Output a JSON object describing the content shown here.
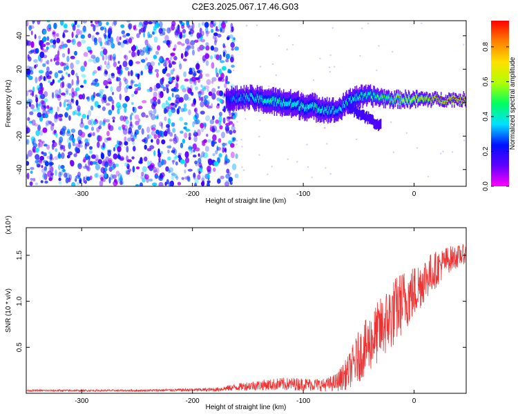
{
  "title": "C2E3.2025.067.17.46.G03",
  "chart_data": [
    {
      "type": "heatmap",
      "xlabel": "Height of straight line (km)",
      "ylabel": "Frequency (Hz)",
      "xlim": [
        -350,
        47
      ],
      "ylim": [
        -50,
        49
      ],
      "xticks": [
        -300,
        -200,
        -100,
        0
      ],
      "yticks": [
        -40,
        -20,
        0,
        20,
        40
      ],
      "colorbar": {
        "label": "Normalized spectral amplitude",
        "range": [
          0.0,
          0.95
        ],
        "ticks": [
          0.0,
          0.2,
          0.4,
          0.6,
          0.8
        ],
        "colormap": [
          "#ff00ff",
          "#6000ff",
          "#0010ff",
          "#00e0ff",
          "#00ff60",
          "#b0ff00",
          "#ffe000",
          "#ff8000",
          "#ff0000"
        ]
      },
      "noise_region": {
        "x_range": [
          -350,
          -165
        ],
        "freq_range": [
          -50,
          49
        ],
        "amplitude_range": [
          0.0,
          0.2
        ]
      },
      "signal_band": [
        {
          "x": -170,
          "f": 2,
          "amp": 0.25,
          "spread": 5
        },
        {
          "x": -150,
          "f": 3,
          "amp": 0.35,
          "spread": 5
        },
        {
          "x": -130,
          "f": 1,
          "amp": 0.42,
          "spread": 6
        },
        {
          "x": -110,
          "f": -1,
          "amp": 0.4,
          "spread": 6
        },
        {
          "x": -90,
          "f": -3,
          "amp": 0.38,
          "spread": 6
        },
        {
          "x": -70,
          "f": -5,
          "amp": 0.35,
          "spread": 5
        },
        {
          "x": -55,
          "f": 3,
          "amp": 0.4,
          "spread": 5
        },
        {
          "x": -40,
          "f": 4,
          "amp": 0.45,
          "spread": 4
        },
        {
          "x": -20,
          "f": 2,
          "amp": 0.55,
          "spread": 3
        },
        {
          "x": 0,
          "f": 2,
          "amp": 0.7,
          "spread": 3
        },
        {
          "x": 20,
          "f": 2,
          "amp": 0.85,
          "spread": 2
        },
        {
          "x": 45,
          "f": 2,
          "amp": 0.9,
          "spread": 2
        }
      ],
      "secondary_branch": [
        {
          "x": -60,
          "f": -2,
          "amp": 0.25
        },
        {
          "x": -45,
          "f": -8,
          "amp": 0.22
        },
        {
          "x": -30,
          "f": -14,
          "amp": 0.2
        }
      ]
    },
    {
      "type": "line",
      "xlabel": "Height of straight line (km)",
      "ylabel": "SNR (10 * v/v)",
      "yscale_note": "(x10⁴)",
      "xlim": [
        -350,
        47
      ],
      "ylim": [
        0,
        1.8
      ],
      "xticks": [
        -300,
        -200,
        -100,
        0
      ],
      "yticks": [
        0.5,
        1.0,
        1.5
      ],
      "ytick_labels": [
        "0.5",
        "1.0",
        "1.5"
      ],
      "color": "#ee3333",
      "envelope": {
        "x": [
          -350,
          -250,
          -180,
          -150,
          -120,
          -100,
          -80,
          -70,
          -60,
          -50,
          -40,
          -30,
          -20,
          -10,
          0,
          10,
          20,
          30,
          47
        ],
        "mean": [
          0.03,
          0.03,
          0.04,
          0.08,
          0.1,
          0.1,
          0.09,
          0.12,
          0.22,
          0.4,
          0.55,
          0.7,
          0.85,
          1.0,
          1.1,
          1.25,
          1.35,
          1.45,
          1.52
        ],
        "noise": [
          0.01,
          0.01,
          0.02,
          0.05,
          0.07,
          0.07,
          0.07,
          0.1,
          0.18,
          0.28,
          0.32,
          0.35,
          0.38,
          0.35,
          0.3,
          0.25,
          0.2,
          0.15,
          0.1
        ]
      }
    }
  ]
}
